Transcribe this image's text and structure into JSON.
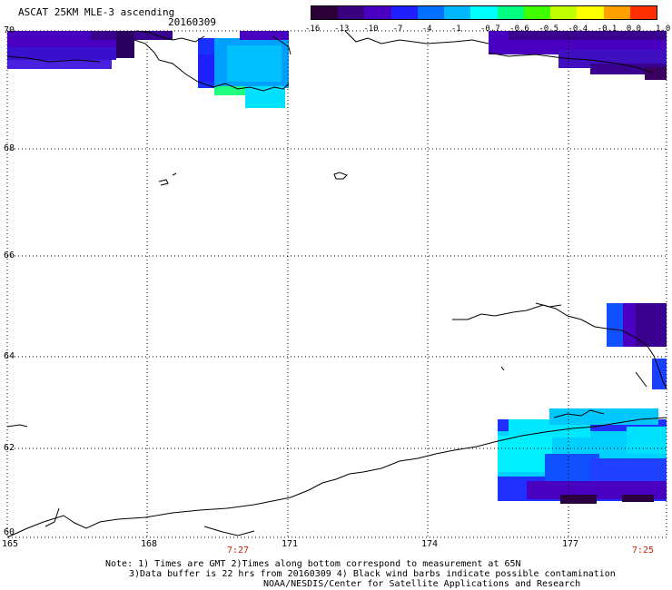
{
  "header": {
    "title": "ASCAT 25KM MLE-3 ascending",
    "date": "20160309"
  },
  "colorbar": {
    "labels": [
      "-16",
      "-13",
      "-10",
      "-7",
      "-4",
      "-1",
      "-0.7",
      "-0.6",
      "-0.5",
      "-0.4",
      "-0.1",
      "0.0",
      "1.0"
    ],
    "colors": [
      "#2a0036",
      "#3a0080",
      "#4a00c0",
      "#2020ff",
      "#0070ff",
      "#00b8ff",
      "#00ffff",
      "#00ff80",
      "#40ff00",
      "#c0ff00",
      "#ffff00",
      "#ffa000",
      "#ff3000"
    ]
  },
  "axes": {
    "lat_labels": [
      "70",
      "68",
      "66",
      "64",
      "62",
      "60"
    ],
    "lon_labels": [
      "165",
      "168",
      "171",
      "174",
      "177"
    ],
    "times": [
      "7:27",
      "7:25"
    ]
  },
  "notes": {
    "line1": "Note: 1) Times are GMT 2)Times along bottom correspond to measurement at 65N",
    "line2": "3)Data buffer is 22 hrs from 20160309 4) Black wind barbs indicate possible contamination",
    "line3": "NOAA/NESDIS/Center for Satellite Applications and Research"
  }
}
